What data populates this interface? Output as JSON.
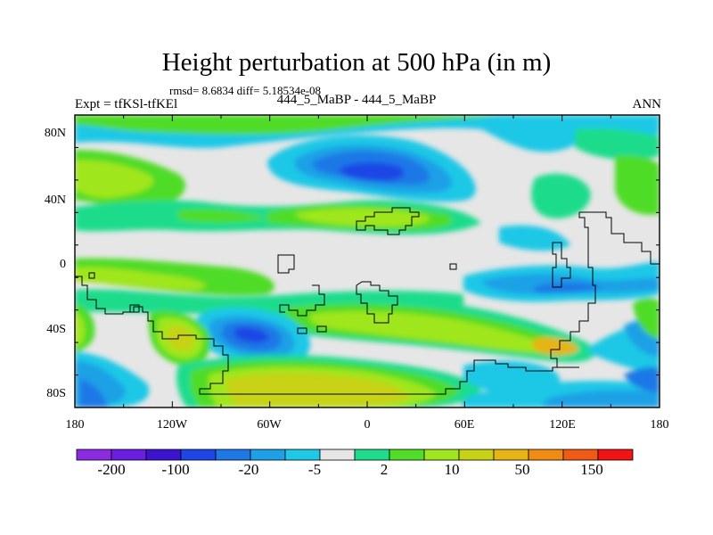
{
  "header": {
    "title": "Height perturbation at 500 hPa (in m)",
    "stats": "rmsd= 8.6834 diff= 5.18534e-08",
    "experiment": "Expt = tfKSl-tfKEl",
    "subtitle": "444_5_MaBP - 444_5_MaBP",
    "season": "ANN"
  },
  "map": {
    "lon_ticks": [
      "180",
      "120W",
      "60W",
      "0",
      "60E",
      "120E",
      "180"
    ],
    "lat_ticks": [
      "80N",
      "40N",
      "0",
      "40S",
      "80S"
    ],
    "lat_values": [
      80,
      40,
      0,
      -40,
      -80
    ]
  },
  "colorbar": {
    "colors": [
      "#8a2be2",
      "#6a1ee0",
      "#3c14d0",
      "#1e46e6",
      "#1e78e6",
      "#1ea0e6",
      "#1ec8e6",
      "#e6e6e6",
      "#1edc8c",
      "#50dc28",
      "#a0e61e",
      "#c8d214",
      "#e6b414",
      "#f08c14",
      "#f05a14",
      "#f01414"
    ],
    "labels": [
      "-200",
      "-100",
      "-20",
      "-5",
      "2",
      "10",
      "50",
      "150"
    ]
  }
}
